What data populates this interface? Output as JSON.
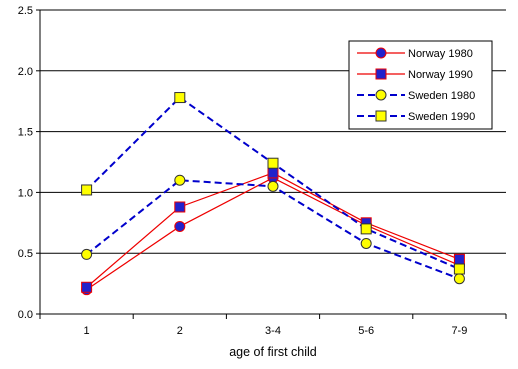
{
  "chart_data": {
    "type": "line",
    "xlabel": "age of first child",
    "ylabel": "",
    "categories": [
      "1",
      "2",
      "3-4",
      "5-6",
      "7-9"
    ],
    "ylim": [
      0,
      2.5
    ],
    "yticks": [
      "0.0",
      "0.5",
      "1.0",
      "1.5",
      "2.0",
      "2.5"
    ],
    "grid": "horizontal gridlines at 0.5, 1.0, 1.5, 2.0, 2.5",
    "legend_position": "top-right",
    "series": [
      {
        "name": "Norway 1980",
        "values": [
          0.2,
          0.72,
          1.12,
          0.73,
          0.4
        ],
        "line_color": "#ee0000",
        "line_style": "solid",
        "marker": "circle",
        "marker_fill": "#2222cc",
        "marker_stroke": "#ee0000"
      },
      {
        "name": "Norway 1990",
        "values": [
          0.22,
          0.88,
          1.16,
          0.75,
          0.45
        ],
        "line_color": "#ee0000",
        "line_style": "solid",
        "marker": "square",
        "marker_fill": "#2222cc",
        "marker_stroke": "#ee0000"
      },
      {
        "name": "Sweden 1980",
        "values": [
          0.49,
          1.1,
          1.05,
          0.58,
          0.29
        ],
        "line_color": "#0000cc",
        "line_style": "dashed",
        "marker": "circle",
        "marker_fill": "#ffff00",
        "marker_stroke": "#333333"
      },
      {
        "name": "Sweden 1990",
        "values": [
          1.02,
          1.78,
          1.24,
          0.7,
          0.37
        ],
        "line_color": "#0000cc",
        "line_style": "dashed",
        "marker": "square",
        "marker_fill": "#ffff00",
        "marker_stroke": "#333333"
      }
    ]
  }
}
